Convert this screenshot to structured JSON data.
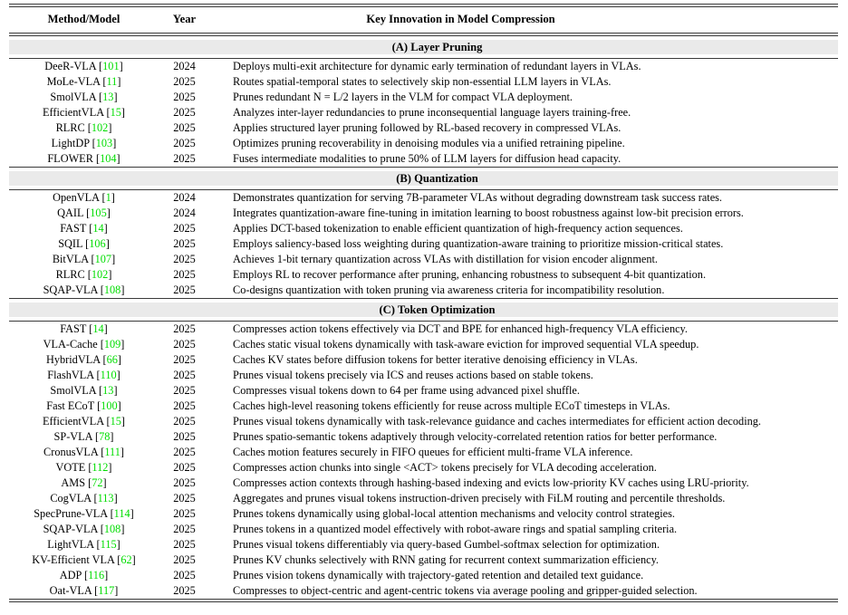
{
  "header": {
    "col_method": "Method/Model",
    "col_year": "Year",
    "col_innovation": "Key Innovation in Model Compression"
  },
  "colors": {
    "citation_green": "#00dd00",
    "banner_bg": "#eaeaea",
    "rule_color": "#3a3a3a"
  },
  "sections": [
    {
      "title": "(A) Layer Pruning",
      "rows": [
        {
          "method": "DeeR-VLA",
          "cite": "101",
          "year": "2024",
          "innovation": "Deploys multi-exit architecture for dynamic early termination of redundant layers in VLAs."
        },
        {
          "method": "MoLe-VLA",
          "cite": "11",
          "year": "2025",
          "innovation": "Routes spatial-temporal states to selectively skip non-essential LLM layers in VLAs."
        },
        {
          "method": "SmolVLA",
          "cite": "13",
          "year": "2025",
          "innovation": "Prunes redundant N = L/2 layers in the VLM for compact VLA deployment."
        },
        {
          "method": "EfficientVLA",
          "cite": "15",
          "year": "2025",
          "innovation": "Analyzes inter-layer redundancies to prune inconsequential language layers training-free."
        },
        {
          "method": "RLRC",
          "cite": "102",
          "year": "2025",
          "innovation": "Applies structured layer pruning followed by RL-based recovery in compressed VLAs."
        },
        {
          "method": "LightDP",
          "cite": "103",
          "year": "2025",
          "innovation": "Optimizes pruning recoverability in denoising modules via a unified retraining pipeline."
        },
        {
          "method": "FLOWER",
          "cite": "104",
          "year": "2025",
          "innovation": "Fuses intermediate modalities to prune 50% of LLM layers for diffusion head capacity."
        }
      ]
    },
    {
      "title": "(B) Quantization",
      "rows": [
        {
          "method": "OpenVLA",
          "cite": "1",
          "year": "2024",
          "innovation": "Demonstrates quantization for serving 7B-parameter VLAs without degrading downstream task success rates."
        },
        {
          "method": "QAIL",
          "cite": "105",
          "year": "2024",
          "innovation": "Integrates quantization-aware fine-tuning in imitation learning to boost robustness against low-bit precision errors."
        },
        {
          "method": "FAST",
          "cite": "14",
          "year": "2025",
          "innovation": "Applies DCT-based tokenization to enable efficient quantization of high-frequency action sequences."
        },
        {
          "method": "SQIL",
          "cite": "106",
          "year": "2025",
          "innovation": "Employs saliency-based loss weighting during quantization-aware training to prioritize mission-critical states."
        },
        {
          "method": "BitVLA",
          "cite": "107",
          "year": "2025",
          "innovation": "Achieves 1-bit ternary quantization across VLAs with distillation for vision encoder alignment."
        },
        {
          "method": "RLRC",
          "cite": "102",
          "year": "2025",
          "innovation": "Employs RL to recover performance after pruning, enhancing robustness to subsequent 4-bit quantization."
        },
        {
          "method": "SQAP-VLA",
          "cite": "108",
          "year": "2025",
          "innovation": "Co-designs quantization with token pruning via awareness criteria for incompatibility resolution."
        }
      ]
    },
    {
      "title": "(C) Token Optimization",
      "rows": [
        {
          "method": "FAST",
          "cite": "14",
          "year": "2025",
          "innovation": "Compresses action tokens effectively via DCT and BPE for enhanced high-frequency VLA efficiency."
        },
        {
          "method": "VLA-Cache",
          "cite": "109",
          "year": "2025",
          "innovation": "Caches static visual tokens dynamically with task-aware eviction for improved sequential VLA speedup."
        },
        {
          "method": "HybridVLA",
          "cite": "66",
          "year": "2025",
          "innovation": "Caches KV states before diffusion tokens for better iterative denoising efficiency in VLAs."
        },
        {
          "method": "FlashVLA",
          "cite": "110",
          "year": "2025",
          "innovation": "Prunes visual tokens precisely via ICS and reuses actions based on stable tokens."
        },
        {
          "method": "SmolVLA",
          "cite": "13",
          "year": "2025",
          "innovation": "Compresses visual tokens down to 64 per frame using advanced pixel shuffle."
        },
        {
          "method": "Fast ECoT",
          "cite": "100",
          "year": "2025",
          "innovation": "Caches high-level reasoning tokens efficiently for reuse across multiple ECoT timesteps in VLAs."
        },
        {
          "method": "EfficientVLA",
          "cite": "15",
          "year": "2025",
          "innovation": "Prunes visual tokens dynamically with task-relevance guidance and caches intermediates for efficient action decoding."
        },
        {
          "method": "SP-VLA",
          "cite": "78",
          "year": "2025",
          "innovation": "Prunes spatio-semantic tokens adaptively through velocity-correlated retention ratios for better performance."
        },
        {
          "method": "CronusVLA",
          "cite": "111",
          "year": "2025",
          "innovation": "Caches motion features securely in FIFO queues for efficient multi-frame VLA inference."
        },
        {
          "method": "VOTE",
          "cite": "112",
          "year": "2025",
          "innovation": "Compresses action chunks into single <ACT> tokens precisely for VLA decoding acceleration."
        },
        {
          "method": "AMS",
          "cite": "72",
          "year": "2025",
          "innovation": "Compresses action contexts through hashing-based indexing and evicts low-priority KV caches using LRU-priority."
        },
        {
          "method": "CogVLA",
          "cite": "113",
          "year": "2025",
          "innovation": "Aggregates and prunes visual tokens instruction-driven precisely with FiLM routing and percentile thresholds."
        },
        {
          "method": "SpecPrune-VLA",
          "cite": "114",
          "year": "2025",
          "innovation": "Prunes tokens dynamically using global-local attention mechanisms and velocity control strategies."
        },
        {
          "method": "SQAP-VLA",
          "cite": "108",
          "year": "2025",
          "innovation": "Prunes tokens in a quantized model effectively with robot-aware rings and spatial sampling criteria."
        },
        {
          "method": "LightVLA",
          "cite": "115",
          "year": "2025",
          "innovation": "Prunes visual tokens differentiably via query-based Gumbel-softmax selection for optimization."
        },
        {
          "method": "KV-Efficient VLA",
          "cite": "62",
          "year": "2025",
          "innovation": "Prunes KV chunks selectively with RNN gating for recurrent context summarization efficiency."
        },
        {
          "method": "ADP",
          "cite": "116",
          "year": "2025",
          "innovation": "Prunes vision tokens dynamically with trajectory-gated retention and detailed text guidance."
        },
        {
          "method": "Oat-VLA",
          "cite": "117",
          "year": "2025",
          "innovation": "Compresses to object-centric and agent-centric tokens via average pooling and gripper-guided selection."
        }
      ]
    }
  ]
}
